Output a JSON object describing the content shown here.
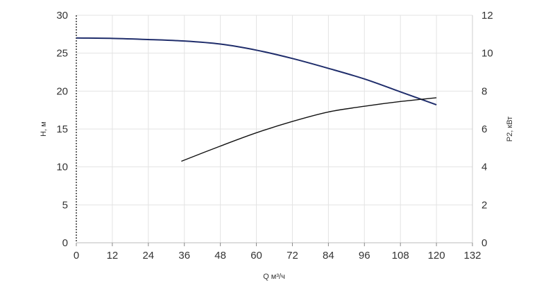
{
  "chart_data": {
    "type": "line",
    "xlabel": "Q м³/ч",
    "ylabel_left": "H, м",
    "ylabel_right": "P2, кВт",
    "xlim": [
      0,
      132
    ],
    "ylim_left": [
      0,
      30
    ],
    "ylim_right": [
      0,
      12
    ],
    "x_ticks": [
      "0",
      "12",
      "24",
      "36",
      "48",
      "60",
      "72",
      "84",
      "96",
      "108",
      "120",
      "132"
    ],
    "y_ticks_left": [
      "0",
      "5",
      "10",
      "15",
      "20",
      "25",
      "30"
    ],
    "y_ticks_right": [
      "0",
      "2",
      "4",
      "6",
      "8",
      "10",
      "12"
    ],
    "series": [
      {
        "axis": "left",
        "color": "#1f2d6b",
        "x": [
          0,
          12,
          24,
          36,
          48,
          60,
          72,
          84,
          96,
          108,
          120
        ],
        "y": [
          27.0,
          26.95,
          26.8,
          26.6,
          26.2,
          25.4,
          24.3,
          23.0,
          21.6,
          19.9,
          18.2
        ]
      },
      {
        "axis": "right",
        "color": "#111111",
        "x": [
          35,
          48,
          60,
          72,
          84,
          96,
          108,
          120
        ],
        "y": [
          4.3,
          5.1,
          5.8,
          6.4,
          6.9,
          7.2,
          7.45,
          7.65
        ]
      }
    ]
  }
}
